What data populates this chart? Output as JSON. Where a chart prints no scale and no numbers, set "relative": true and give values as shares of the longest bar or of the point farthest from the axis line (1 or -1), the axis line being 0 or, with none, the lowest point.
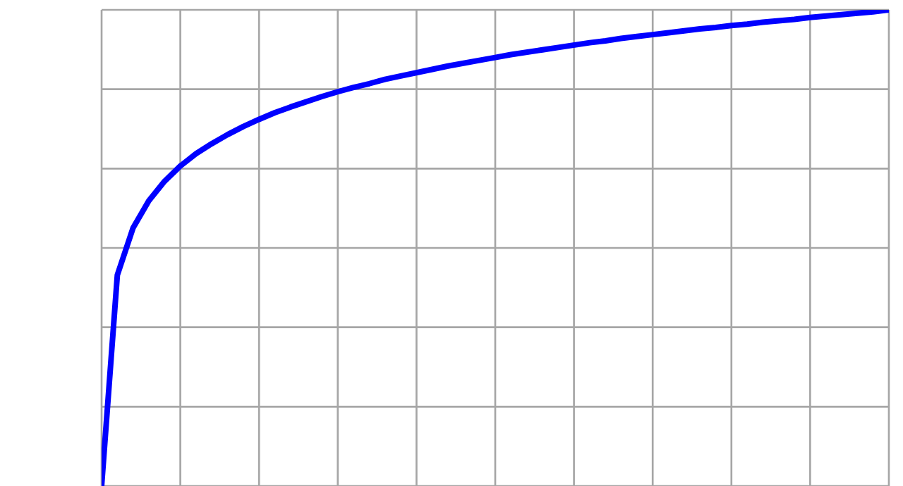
{
  "chart_data": {
    "type": "line",
    "relative": true,
    "grid": true,
    "color": "#0000ff",
    "categories": [
      null,
      null,
      null,
      null,
      null,
      null,
      null,
      null,
      null,
      null,
      null,
      null,
      null,
      null,
      null,
      null,
      null,
      null,
      null,
      null,
      null,
      null,
      null,
      null,
      null,
      null,
      null,
      null,
      null,
      null,
      null,
      null,
      null,
      null,
      null,
      null,
      null,
      null,
      null,
      null,
      null,
      null,
      null,
      null,
      null,
      null,
      null,
      null,
      null,
      null,
      null
    ],
    "values": [
      0,
      0.443,
      0.542,
      0.599,
      0.64,
      0.672,
      0.698,
      0.719,
      0.738,
      0.755,
      0.77,
      0.784,
      0.796,
      0.807,
      0.818,
      0.828,
      0.837,
      0.845,
      0.854,
      0.861,
      0.868,
      0.875,
      0.882,
      0.888,
      0.894,
      0.9,
      0.906,
      0.911,
      0.916,
      0.921,
      0.926,
      0.931,
      0.935,
      0.94,
      0.944,
      0.948,
      0.952,
      0.956,
      0.96,
      0.963,
      0.967,
      0.97,
      0.974,
      0.977,
      0.98,
      0.984,
      0.987,
      0.99,
      0.993,
      0.996,
      1.0
    ]
  }
}
